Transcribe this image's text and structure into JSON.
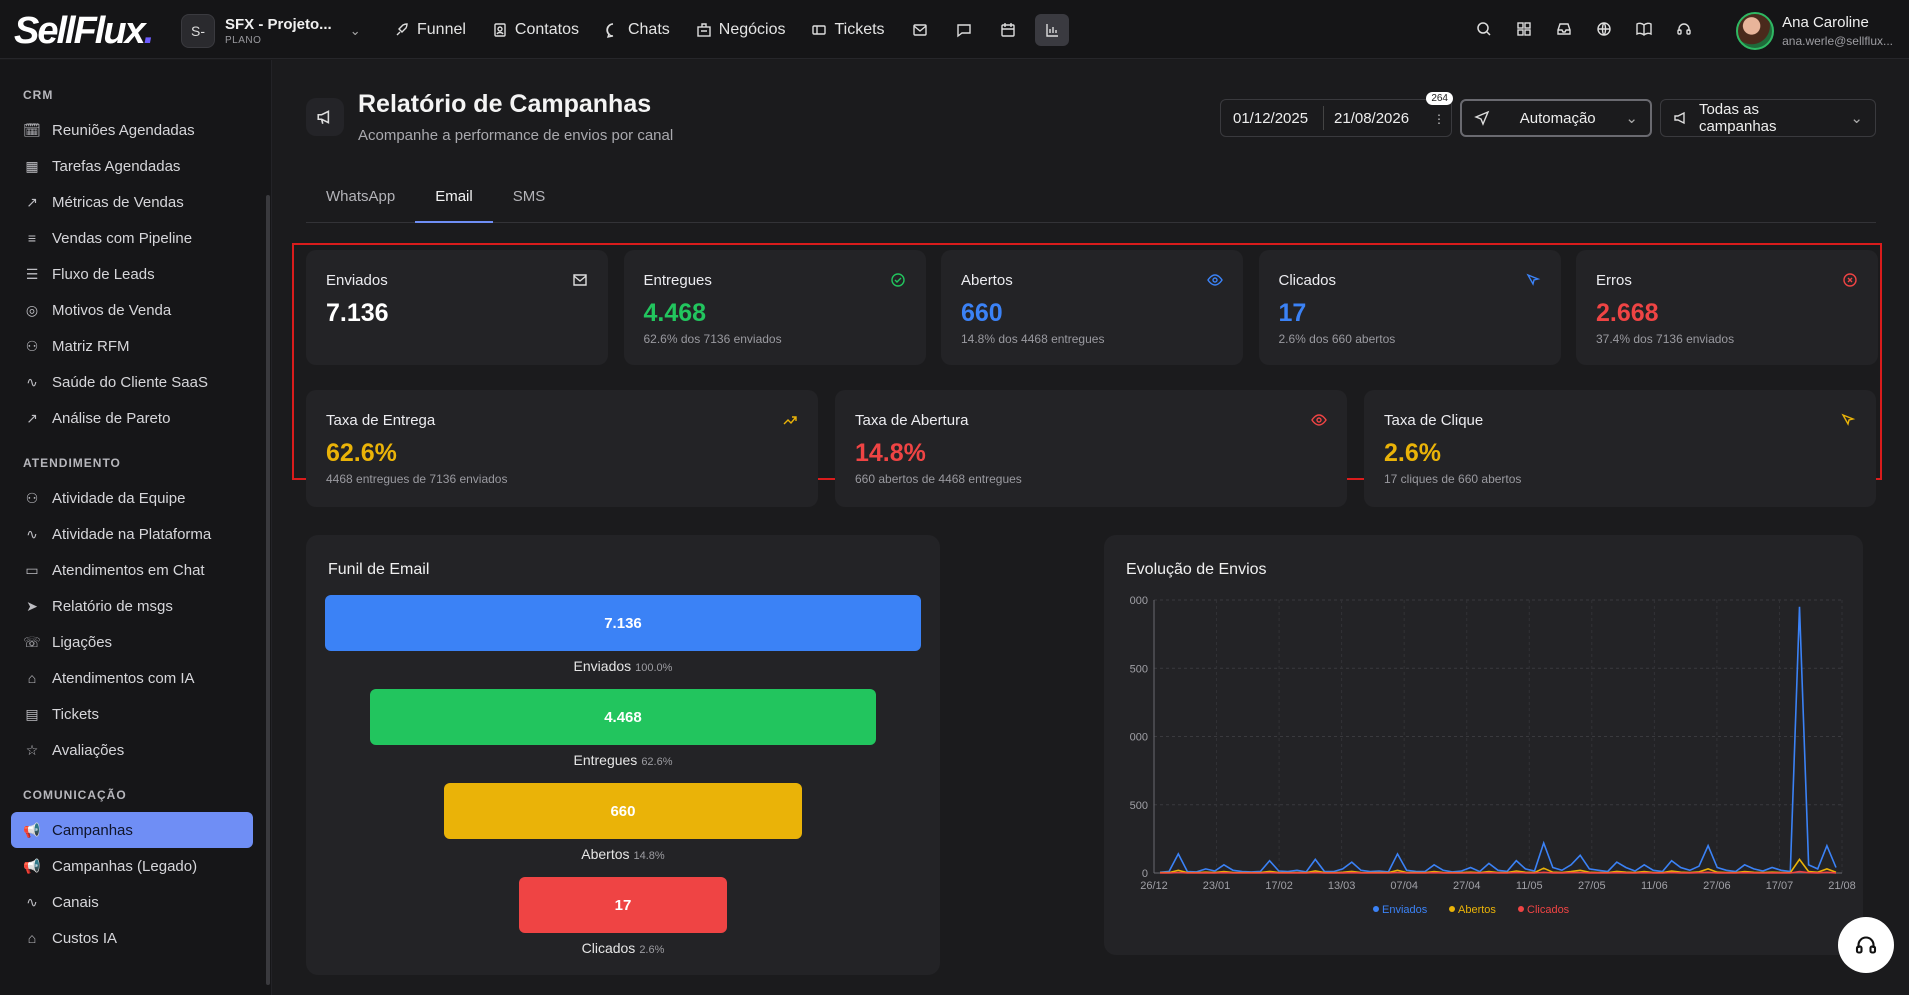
{
  "topbar": {
    "logo": "SellFlux",
    "project_badge": "S-",
    "project_name": "SFX - Projeto...",
    "project_plan": "PLANO",
    "nav": [
      "Funnel",
      "Contatos",
      "Chats",
      "Negócios",
      "Tickets"
    ],
    "user_name": "Ana Caroline",
    "user_email": "ana.werle@sellflux..."
  },
  "sidebar": {
    "sections": [
      {
        "title": "CRM",
        "items": [
          {
            "label": "Reuniões Agendadas",
            "icon": "calendar-clock-icon"
          },
          {
            "label": "Tarefas Agendadas",
            "icon": "calendar-icon"
          },
          {
            "label": "Métricas de Vendas",
            "icon": "trending-up-icon"
          },
          {
            "label": "Vendas com Pipeline",
            "icon": "pipeline-icon"
          },
          {
            "label": "Fluxo de Leads",
            "icon": "list-icon"
          },
          {
            "label": "Motivos de Venda",
            "icon": "target-icon"
          },
          {
            "label": "Matriz RFM",
            "icon": "users-icon"
          },
          {
            "label": "Saúde do Cliente SaaS",
            "icon": "activity-icon"
          },
          {
            "label": "Análise de Pareto",
            "icon": "trending-up-icon"
          }
        ]
      },
      {
        "title": "ATENDIMENTO",
        "items": [
          {
            "label": "Atividade da Equipe",
            "icon": "users-icon"
          },
          {
            "label": "Atividade na Plataforma",
            "icon": "activity-icon"
          },
          {
            "label": "Atendimentos em Chat",
            "icon": "chat-icon"
          },
          {
            "label": "Relatório de msgs",
            "icon": "send-icon"
          },
          {
            "label": "Ligações",
            "icon": "phone-icon"
          },
          {
            "label": "Atendimentos com IA",
            "icon": "bot-icon"
          },
          {
            "label": "Tickets",
            "icon": "ticket-icon"
          },
          {
            "label": "Avaliações",
            "icon": "star-icon"
          }
        ]
      },
      {
        "title": "COMUNICAÇÃO",
        "items": [
          {
            "label": "Campanhas",
            "icon": "megaphone-icon",
            "active": true
          },
          {
            "label": "Campanhas (Legado)",
            "icon": "megaphone-icon"
          },
          {
            "label": "Canais",
            "icon": "activity-icon"
          },
          {
            "label": "Custos IA",
            "icon": "bot-icon"
          }
        ]
      }
    ]
  },
  "page": {
    "title": "Relatório de Campanhas",
    "subtitle": "Acompanhe a performance de envios por canal",
    "date_start": "01/12/2025",
    "date_end": "21/08/2026",
    "date_badge": "264",
    "automation": "Automação",
    "campaigns": "Todas as campanhas",
    "tabs": [
      "WhatsApp",
      "Email",
      "SMS"
    ],
    "active_tab": "Email"
  },
  "kpis": [
    {
      "label": "Enviados",
      "value": "7.136",
      "sub": "",
      "color": "#ffffff",
      "icon": "mail-icon"
    },
    {
      "label": "Entregues",
      "value": "4.468",
      "sub": "62.6% dos 7136 enviados",
      "color": "#22c55e",
      "icon": "check-circle-icon"
    },
    {
      "label": "Abertos",
      "value": "660",
      "sub": "14.8% dos 4468 entregues",
      "color": "#3b82f6",
      "icon": "eye-icon"
    },
    {
      "label": "Clicados",
      "value": "17",
      "sub": "2.6% dos 660 abertos",
      "color": "#3b82f6",
      "icon": "cursor-icon"
    },
    {
      "label": "Erros",
      "value": "2.668",
      "sub": "37.4% dos 7136 enviados",
      "color": "#ef4444",
      "icon": "x-circle-icon"
    }
  ],
  "rates": [
    {
      "label": "Taxa de Entrega",
      "value": "62.6%",
      "sub": "4468 entregues de 7136 enviados",
      "color": "#eab308",
      "icon": "trending-up-icon"
    },
    {
      "label": "Taxa de Abertura",
      "value": "14.8%",
      "sub": "660 abertos de 4468 entregues",
      "color": "#ef4444",
      "icon": "eye-icon"
    },
    {
      "label": "Taxa de Clique",
      "value": "2.6%",
      "sub": "17 cliques de 660 abertos",
      "color": "#eab308",
      "icon": "cursor-icon"
    }
  ],
  "funnel": {
    "title": "Funil de Email",
    "stages": [
      {
        "value": "7.136",
        "label": "Enviados",
        "pct": "100.0%",
        "fraction": 1.0,
        "color": "#3b82f6"
      },
      {
        "value": "4.468",
        "label": "Entregues",
        "pct": "62.6%",
        "fraction": 0.85,
        "color": "#22c55e"
      },
      {
        "value": "660",
        "label": "Abertos",
        "pct": "14.8%",
        "fraction": 0.6,
        "color": "#eab308"
      },
      {
        "value": "17",
        "label": "Clicados",
        "pct": "2.6%",
        "fraction": 0.35,
        "color": "#ef4444"
      }
    ]
  },
  "chart_data": {
    "type": "line",
    "title": "Evolução de Envios",
    "x_ticks": [
      "26/12",
      "23/01",
      "17/02",
      "13/03",
      "07/04",
      "27/04",
      "11/05",
      "27/05",
      "11/06",
      "27/06",
      "17/07",
      "21/08"
    ],
    "y_ticks": [
      "0",
      "500",
      "000",
      "500",
      "000"
    ],
    "ylim": [
      0,
      2000
    ],
    "series": [
      {
        "name": "Enviados",
        "color": "#3b82f6",
        "values": [
          5,
          12,
          140,
          10,
          8,
          30,
          15,
          60,
          20,
          10,
          8,
          12,
          90,
          15,
          10,
          20,
          8,
          100,
          12,
          10,
          30,
          80,
          20,
          10,
          15,
          8,
          140,
          20,
          12,
          10,
          60,
          20,
          8,
          15,
          40,
          10,
          70,
          20,
          12,
          90,
          30,
          15,
          220,
          40,
          20,
          60,
          130,
          30,
          20,
          10,
          80,
          40,
          15,
          60,
          20,
          10,
          90,
          40,
          20,
          50,
          200,
          40,
          20,
          10,
          60,
          30,
          15,
          40,
          20,
          10,
          1950,
          60,
          30,
          200,
          40
        ]
      },
      {
        "name": "Abertos",
        "color": "#eab308",
        "values": [
          2,
          3,
          20,
          2,
          2,
          6,
          3,
          10,
          4,
          2,
          2,
          3,
          12,
          3,
          2,
          4,
          2,
          15,
          3,
          2,
          5,
          12,
          4,
          2,
          3,
          2,
          20,
          4,
          3,
          2,
          10,
          4,
          2,
          3,
          6,
          2,
          10,
          4,
          3,
          15,
          5,
          3,
          35,
          6,
          4,
          10,
          20,
          5,
          4,
          2,
          12,
          6,
          3,
          10,
          4,
          2,
          14,
          6,
          4,
          8,
          30,
          6,
          4,
          2,
          10,
          5,
          3,
          6,
          4,
          2,
          100,
          10,
          5,
          30,
          6
        ]
      },
      {
        "name": "Clicados",
        "color": "#ef4444",
        "values": [
          0,
          0,
          4,
          0,
          0,
          1,
          0,
          2,
          0,
          0,
          0,
          0,
          2,
          0,
          0,
          1,
          0,
          3,
          0,
          0,
          1,
          2,
          1,
          0,
          0,
          0,
          4,
          1,
          0,
          0,
          2,
          1,
          0,
          0,
          1,
          0,
          2,
          1,
          0,
          3,
          1,
          0,
          5,
          1,
          1,
          2,
          4,
          1,
          1,
          0,
          2,
          1,
          0,
          2,
          1,
          0,
          3,
          1,
          1,
          2,
          5,
          1,
          1,
          0,
          2,
          1,
          0,
          1,
          1,
          0,
          10,
          2,
          1,
          5,
          1
        ]
      }
    ],
    "legend": "bottom"
  }
}
